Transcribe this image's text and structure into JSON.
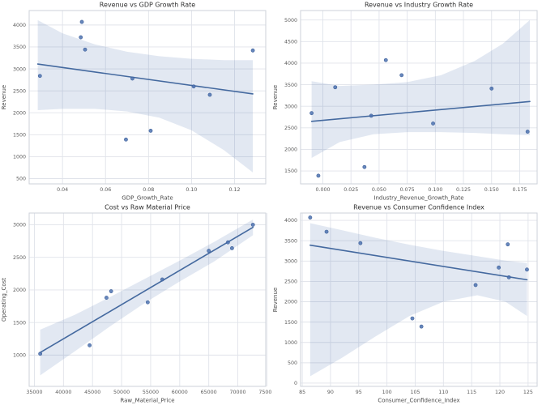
{
  "figure": {
    "background": "#ffffff",
    "rows": 2,
    "cols": 2
  },
  "colors": {
    "point": "#4c72b0",
    "point_edge": "#3d5f99",
    "point_opacity": "0.85",
    "line": "#44699f",
    "band": "#4c72b0",
    "band_opacity": "0.16",
    "grid": "#e0e3ea",
    "spine": "#cdd2da",
    "title_text": "#2e2e2e",
    "tick_text": "#5a5a5a",
    "label_text": "#4a4a4a"
  },
  "chart_data": [
    {
      "id": "revenue-vs-gdp",
      "type": "scatter",
      "title": "Revenue vs GDP Growth Rate",
      "xlabel": "GDP_Growth_Rate",
      "ylabel": "Revenue",
      "grid": true,
      "legend": null,
      "xlim": [
        0.0245,
        0.1345
      ],
      "ylim": [
        380,
        4330
      ],
      "xticks": [
        0.04,
        0.06,
        0.08,
        0.1,
        0.12
      ],
      "xtick_labels": [
        "0.04",
        "0.06",
        "0.08",
        "0.10",
        "0.12"
      ],
      "yticks": [
        500,
        1000,
        1500,
        2000,
        2500,
        3000,
        3500,
        4000
      ],
      "ytick_labels": [
        "500",
        "1000",
        "1500",
        "2000",
        "2500",
        "3000",
        "3500",
        "4000"
      ],
      "points": [
        [
          0.0295,
          2840
        ],
        [
          0.049,
          4070
        ],
        [
          0.0485,
          3720
        ],
        [
          0.0505,
          3440
        ],
        [
          0.0695,
          1390
        ],
        [
          0.0725,
          2780
        ],
        [
          0.081,
          1590
        ],
        [
          0.101,
          2600
        ],
        [
          0.1085,
          2410
        ],
        [
          0.1285,
          3420
        ]
      ],
      "regression": {
        "x": [
          0.0285,
          0.1285
        ],
        "y": [
          3110,
          2430
        ]
      },
      "ci_band": {
        "x": [
          0.0285,
          0.04,
          0.055,
          0.07,
          0.085,
          0.1,
          0.115,
          0.1285
        ],
        "upper": [
          4110,
          3810,
          3560,
          3390,
          3290,
          3230,
          3200,
          3200
        ],
        "lower": [
          2060,
          2090,
          2090,
          2030,
          1890,
          1600,
          1150,
          640
        ]
      }
    },
    {
      "id": "revenue-vs-industry",
      "type": "scatter",
      "title": "Revenue vs Industry Growth Rate",
      "xlabel": "Industry_Revenue_Growth_Rate",
      "ylabel": "Revenue",
      "grid": true,
      "legend": null,
      "xlim": [
        -0.0198,
        0.1905
      ],
      "ylim": [
        1200,
        5220
      ],
      "xticks": [
        0.0,
        0.025,
        0.05,
        0.075,
        0.1,
        0.125,
        0.15,
        0.175
      ],
      "xtick_labels": [
        "0.000",
        "0.025",
        "0.050",
        "0.075",
        "0.100",
        "0.125",
        "0.150",
        "0.175"
      ],
      "yticks": [
        1500,
        2000,
        2500,
        3000,
        3500,
        4000,
        4500,
        5000
      ],
      "ytick_labels": [
        "1500",
        "2000",
        "2500",
        "3000",
        "3500",
        "4000",
        "4500",
        "5000"
      ],
      "points": [
        [
          -0.01,
          2840
        ],
        [
          -0.004,
          1390
        ],
        [
          0.011,
          3440
        ],
        [
          0.037,
          1590
        ],
        [
          0.043,
          2780
        ],
        [
          0.056,
          4070
        ],
        [
          0.07,
          3720
        ],
        [
          0.098,
          2600
        ],
        [
          0.15,
          3410
        ],
        [
          0.182,
          2410
        ]
      ],
      "regression": {
        "x": [
          -0.01,
          0.184
        ],
        "y": [
          2650,
          3110
        ]
      },
      "ci_band": {
        "x": [
          -0.01,
          0.015,
          0.045,
          0.075,
          0.105,
          0.135,
          0.16,
          0.184
        ],
        "upper": [
          3580,
          3470,
          3500,
          3560,
          3720,
          4050,
          4450,
          5000
        ],
        "lower": [
          1800,
          2170,
          2350,
          2400,
          2400,
          2380,
          2350,
          2330
        ]
      }
    },
    {
      "id": "cost-vs-raw-material",
      "type": "scatter",
      "title": "Cost vs Raw Material Price",
      "xlabel": "Raw_Material_Price",
      "ylabel": "Operating_Cost",
      "grid": true,
      "legend": null,
      "xlim": [
        34100,
        74800
      ],
      "ylim": [
        520,
        3180
      ],
      "xticks": [
        35000,
        40000,
        45000,
        50000,
        55000,
        60000,
        65000,
        70000,
        75000
      ],
      "xtick_labels": [
        "35000",
        "40000",
        "45000",
        "50000",
        "55000",
        "60000",
        "65000",
        "70000",
        "75000"
      ],
      "yticks": [
        1000,
        1500,
        2000,
        2500,
        3000
      ],
      "ytick_labels": [
        "1000",
        "1500",
        "2000",
        "2500",
        "3000"
      ],
      "points": [
        [
          36000,
          1020
        ],
        [
          44500,
          1150
        ],
        [
          47400,
          1880
        ],
        [
          48200,
          1980
        ],
        [
          54500,
          1810
        ],
        [
          57000,
          2160
        ],
        [
          65000,
          2600
        ],
        [
          68300,
          2730
        ],
        [
          69000,
          2640
        ],
        [
          72600,
          3000
        ]
      ],
      "regression": {
        "x": [
          36000,
          72600
        ],
        "y": [
          1040,
          2960
        ]
      },
      "ci_band": {
        "x": [
          36000,
          42000,
          48000,
          54000,
          60000,
          66000,
          72600
        ],
        "upper": [
          1390,
          1620,
          1890,
          2170,
          2450,
          2740,
          3080
        ],
        "lower": [
          690,
          1060,
          1440,
          1800,
          2130,
          2440,
          2840
        ]
      }
    },
    {
      "id": "revenue-vs-consumer-confidence",
      "type": "scatter",
      "title": "Revenue vs Consumer Confidence Index",
      "xlabel": "Consumer_Confidence_Index",
      "ylabel": "Revenue",
      "grid": true,
      "legend": null,
      "xlim": [
        84.7,
        126.6
      ],
      "ylim": [
        -80,
        4180
      ],
      "xticks": [
        85,
        90,
        95,
        100,
        105,
        110,
        115,
        120,
        125
      ],
      "xtick_labels": [
        "85",
        "90",
        "95",
        "100",
        "105",
        "110",
        "115",
        "120",
        "125"
      ],
      "yticks": [
        0,
        500,
        1000,
        1500,
        2000,
        2500,
        3000,
        3500,
        4000
      ],
      "ytick_labels": [
        "0",
        "500",
        "1000",
        "1500",
        "2000",
        "2500",
        "3000",
        "3500",
        "4000"
      ],
      "points": [
        [
          86.4,
          4070
        ],
        [
          89.3,
          3720
        ],
        [
          95.3,
          3440
        ],
        [
          104.5,
          1590
        ],
        [
          106.1,
          1390
        ],
        [
          115.7,
          2410
        ],
        [
          119.8,
          2840
        ],
        [
          121.4,
          3410
        ],
        [
          121.6,
          2600
        ],
        [
          124.8,
          2790
        ]
      ],
      "regression": {
        "x": [
          86.4,
          124.8
        ],
        "y": [
          3390,
          2540
        ]
      },
      "ci_band": {
        "x": [
          86.4,
          92,
          98,
          104,
          110,
          116,
          121,
          124.8
        ],
        "upper": [
          3930,
          3760,
          3570,
          3400,
          3250,
          3120,
          3010,
          2950
        ],
        "lower": [
          170,
          620,
          1150,
          1650,
          2000,
          2160,
          2000,
          1650
        ]
      }
    }
  ]
}
